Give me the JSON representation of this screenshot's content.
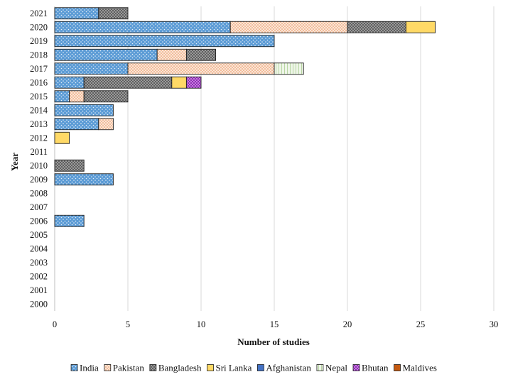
{
  "chart_data": {
    "type": "bar",
    "orientation": "horizontal",
    "stacked": true,
    "title": "",
    "xlabel": "Number of studies",
    "ylabel": "Year",
    "xlim": [
      0,
      30
    ],
    "xticks": [
      0,
      5,
      10,
      15,
      20,
      25,
      30
    ],
    "grid": "vertical",
    "legend_position": "bottom",
    "categories": [
      "2021",
      "2020",
      "2019",
      "2018",
      "2017",
      "2016",
      "2015",
      "2014",
      "2013",
      "2012",
      "2011",
      "2010",
      "2009",
      "2008",
      "2007",
      "2006",
      "2005",
      "2004",
      "2003",
      "2002",
      "2001",
      "2000"
    ],
    "series": [
      {
        "name": "India",
        "color": "#5b9bd5",
        "pattern": "dots-white",
        "values": [
          3,
          12,
          15,
          7,
          5,
          2,
          1,
          4,
          3,
          0,
          0,
          0,
          4,
          0,
          0,
          2,
          0,
          0,
          0,
          0,
          0,
          0
        ]
      },
      {
        "name": "Pakistan",
        "color": "#f8cbad",
        "pattern": "dots-orange",
        "values": [
          0,
          8,
          0,
          2,
          10,
          0,
          1,
          0,
          1,
          0,
          0,
          0,
          0,
          0,
          0,
          0,
          0,
          0,
          0,
          0,
          0,
          0
        ]
      },
      {
        "name": "Bangladesh",
        "color": "#a5a5a5",
        "pattern": "checker-dark",
        "values": [
          2,
          4,
          0,
          2,
          0,
          6,
          3,
          0,
          0,
          0,
          0,
          2,
          0,
          0,
          0,
          0,
          0,
          0,
          0,
          0,
          0,
          0
        ]
      },
      {
        "name": "Sri Lanka",
        "color": "#ffd966",
        "pattern": "solid",
        "values": [
          0,
          2,
          0,
          0,
          0,
          1,
          0,
          0,
          0,
          1,
          0,
          0,
          0,
          0,
          0,
          0,
          0,
          0,
          0,
          0,
          0,
          0
        ]
      },
      {
        "name": "Afghanistan",
        "color": "#4472c4",
        "pattern": "solid",
        "values": [
          0,
          0,
          0,
          0,
          0,
          0,
          0,
          0,
          0,
          0,
          0,
          0,
          0,
          0,
          0,
          0,
          0,
          0,
          0,
          0,
          0,
          0
        ]
      },
      {
        "name": "Nepal",
        "color": "#e2efda",
        "pattern": "vlines-green",
        "values": [
          0,
          0,
          0,
          0,
          2,
          0,
          0,
          0,
          0,
          0,
          0,
          0,
          0,
          0,
          0,
          0,
          0,
          0,
          0,
          0,
          0,
          0
        ]
      },
      {
        "name": "Bhutan",
        "color": "#b356d6",
        "pattern": "checker-purple",
        "values": [
          0,
          0,
          0,
          0,
          0,
          1,
          0,
          0,
          0,
          0,
          0,
          0,
          0,
          0,
          0,
          0,
          0,
          0,
          0,
          0,
          0,
          0
        ]
      },
      {
        "name": "Maldives",
        "color": "#c55a11",
        "pattern": "solid",
        "values": [
          0,
          0,
          0,
          0,
          0,
          0,
          0,
          0,
          0,
          0,
          0,
          0,
          0,
          0,
          0,
          0,
          0,
          0,
          0,
          0,
          0,
          0
        ]
      }
    ]
  }
}
